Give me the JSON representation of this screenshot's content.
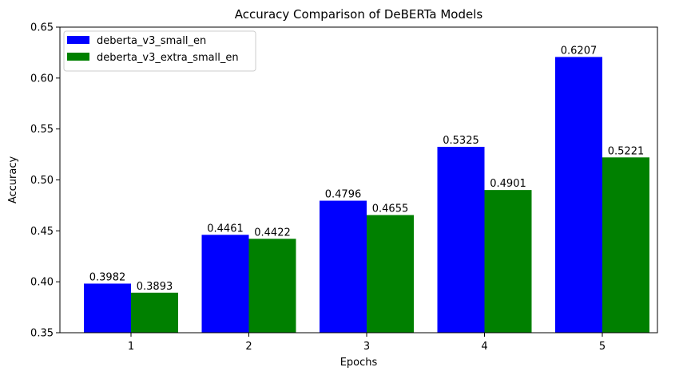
{
  "chart_data": {
    "type": "bar",
    "title": "Accuracy Comparison of DeBERTa Models",
    "xlabel": "Epochs",
    "ylabel": "Accuracy",
    "categories": [
      "1",
      "2",
      "3",
      "4",
      "5"
    ],
    "ylim": [
      0.35,
      0.65
    ],
    "yticks": [
      "0.35",
      "0.40",
      "0.45",
      "0.50",
      "0.55",
      "0.60",
      "0.65"
    ],
    "grid": false,
    "legend_position": "top-left",
    "series": [
      {
        "name": "deberta_v3_small_en",
        "color": "#0000ff",
        "values": [
          0.3982,
          0.4461,
          0.4796,
          0.5325,
          0.6207
        ],
        "labels": [
          "0.3982",
          "0.4461",
          "0.4796",
          "0.5325",
          "0.6207"
        ]
      },
      {
        "name": "deberta_v3_extra_small_en",
        "color": "#008000",
        "values": [
          0.3893,
          0.4422,
          0.4655,
          0.4901,
          0.5221
        ],
        "labels": [
          "0.3893",
          "0.4422",
          "0.4655",
          "0.4901",
          "0.5221"
        ]
      }
    ]
  }
}
